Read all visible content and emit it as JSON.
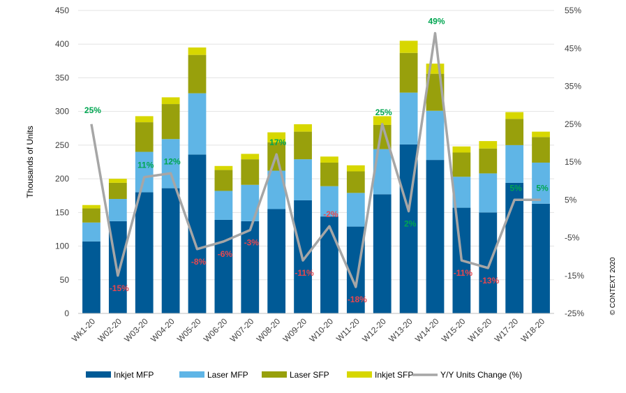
{
  "chart_data": {
    "type": "bar",
    "stacked": true,
    "categories": [
      "Wk1-20",
      "W02-20",
      "W03-20",
      "W04-20",
      "W05-20",
      "W06-20",
      "W07-20",
      "W08-20",
      "W09-20",
      "W10-20",
      "W11-20",
      "W12-20",
      "W13-20",
      "W14-20",
      "W15-20",
      "W16-20",
      "W17-20",
      "W18-20"
    ],
    "series": [
      {
        "name": "Inkjet MFP",
        "color": "#005a96",
        "values": [
          107,
          137,
          180,
          186,
          236,
          139,
          137,
          155,
          168,
          144,
          129,
          177,
          251,
          228,
          157,
          150,
          194,
          163
        ]
      },
      {
        "name": "Laser MFP",
        "color": "#5fb5e6",
        "values": [
          28,
          33,
          60,
          73,
          91,
          43,
          54,
          57,
          61,
          45,
          50,
          67,
          77,
          73,
          46,
          58,
          56,
          61
        ]
      },
      {
        "name": "Laser SFP",
        "color": "#98a00c",
        "values": [
          21,
          24,
          44,
          52,
          57,
          31,
          38,
          42,
          41,
          35,
          32,
          36,
          59,
          55,
          36,
          37,
          39,
          38
        ]
      },
      {
        "name": "Inkjet SFP",
        "color": "#d7d700",
        "values": [
          5,
          6,
          9,
          10,
          11,
          6,
          8,
          15,
          11,
          9,
          9,
          13,
          18,
          15,
          9,
          11,
          10,
          8
        ]
      }
    ],
    "line_series": {
      "name": "Y/Y Units Change (%)",
      "color": "#a6a6a6",
      "axis": "secondary",
      "values": [
        25,
        -15,
        11,
        12,
        -8,
        -6,
        -3,
        17,
        -11,
        -2,
        -18,
        25,
        2,
        49,
        -11,
        -13,
        5,
        5
      ],
      "labels": [
        "25%",
        "-15%",
        "11%",
        "12%",
        "-8%",
        "-6%",
        "-3%",
        "17%",
        "-11%",
        "-2%",
        "-18%",
        "25%",
        "2%",
        "49%",
        "-11%",
        "-13%",
        "5%",
        "5%"
      ],
      "positive_label_color": "#00a651",
      "negative_label_color": "#e8474f"
    },
    "ylabel": "Thousands of Units",
    "ylim": [
      0,
      450
    ],
    "yticks": [
      "0",
      "50",
      "100",
      "150",
      "200",
      "250",
      "300",
      "350",
      "400",
      "450"
    ],
    "y2lim": [
      -25,
      55
    ],
    "y2ticks": [
      "-25%",
      "-15%",
      "-5%",
      "5%",
      "15%",
      "25%",
      "35%",
      "45%",
      "55%"
    ],
    "grid": true,
    "legend_position": "bottom"
  },
  "copyright": "© CONTEXT 2020"
}
